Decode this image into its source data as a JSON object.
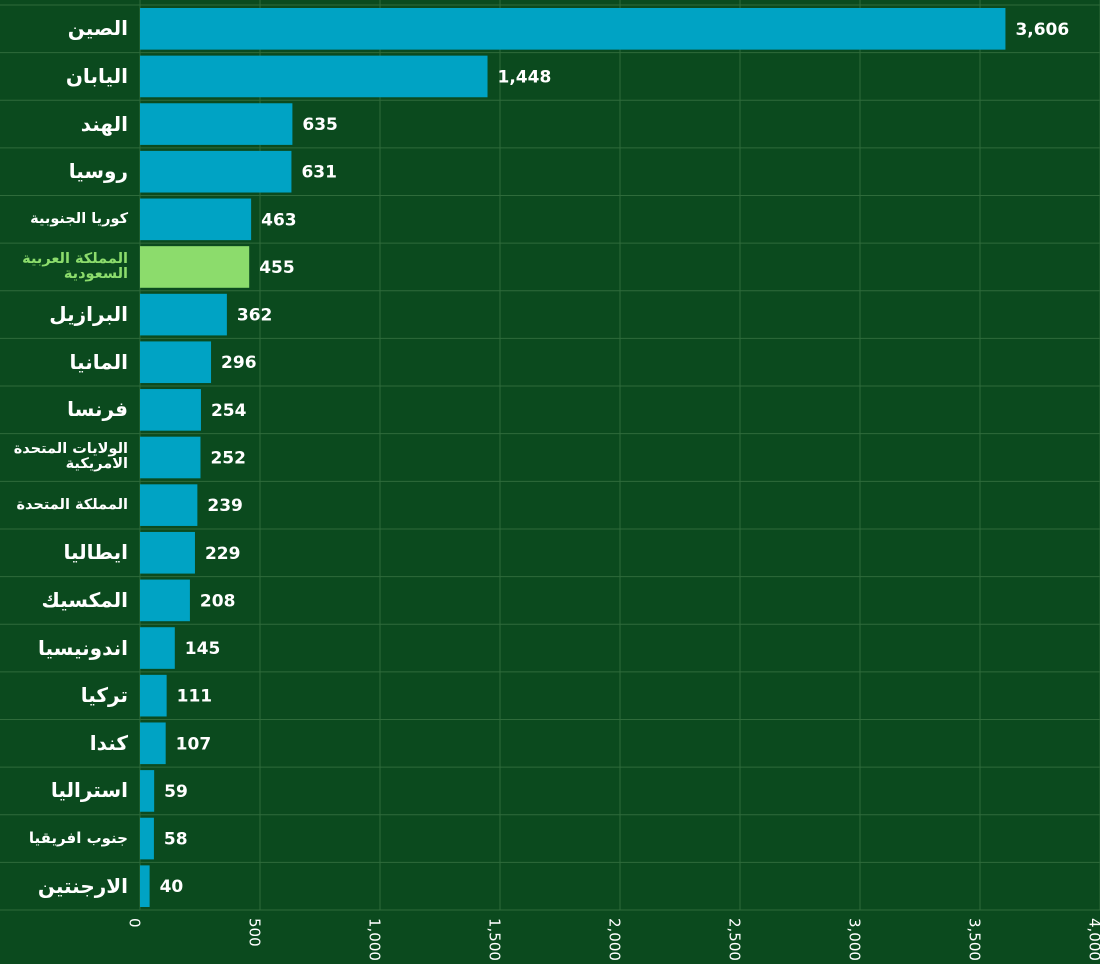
{
  "chart_data": {
    "type": "barh",
    "categories": [
      "الصين",
      "اليابان",
      "الهند",
      "روسيا",
      "كوريا الجنوبية",
      "المملكة العربية السعودية",
      "البرازيل",
      "المانيا",
      "فرنسا",
      "الولايات المتحدة الامريكية",
      "المملكة المتحدة",
      "ايطاليا",
      "المكسيك",
      "اندونيسيا",
      "تركيا",
      "كندا",
      "استراليا",
      "جنوب افريقيا",
      "الارجنتين"
    ],
    "values": [
      3606,
      1448,
      635,
      631,
      463,
      455,
      362,
      296,
      254,
      252,
      239,
      229,
      208,
      145,
      111,
      107,
      59,
      58,
      40
    ],
    "value_labels": [
      "3,606",
      "1,448",
      "635",
      "631",
      "463",
      "455",
      "362",
      "296",
      "254",
      "252",
      "239",
      "229",
      "208",
      "145",
      "111",
      "107",
      "59",
      "58",
      "40"
    ],
    "colors": [
      "#00a3c4",
      "#00a3c4",
      "#00a3c4",
      "#00a3c4",
      "#00a3c4",
      "#8cdc6c",
      "#00a3c4",
      "#00a3c4",
      "#00a3c4",
      "#00a3c4",
      "#00a3c4",
      "#00a3c4",
      "#00a3c4",
      "#00a3c4",
      "#00a3c4",
      "#00a3c4",
      "#00a3c4",
      "#00a3c4",
      "#00a3c4"
    ],
    "xlim": [
      0,
      4000
    ],
    "xticks": [
      0,
      500,
      {
        "value": 1000,
        "label": "1,000"
      },
      {
        "value": 1500,
        "label": "1,500"
      },
      {
        "value": 2000,
        "label": "2,000"
      },
      {
        "value": 2500,
        "label": "2,500"
      },
      {
        "value": 3000,
        "label": "3,000"
      },
      {
        "value": 3500,
        "label": "3,500"
      },
      {
        "value": 4000,
        "label": "4,000"
      }
    ],
    "grid": true
  }
}
